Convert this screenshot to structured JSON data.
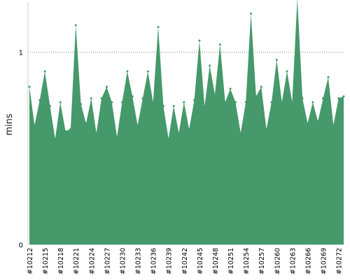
{
  "chart_data": {
    "type": "area",
    "ylabel": "mins",
    "xlabel": "",
    "title": "",
    "ylim": [
      0,
      1.26
    ],
    "y_ticks": [
      0,
      1
    ],
    "y_tick_labels": [
      "0",
      "1"
    ],
    "grid": {
      "horizontal_dotted_at": [
        1
      ]
    },
    "legend": "none",
    "colors": {
      "fill": "#45996a",
      "grid": "#888888",
      "axis": "#cccccc"
    },
    "x_tick_labels": [
      "#10212",
      "#10215",
      "#10218",
      "#10221",
      "#10224",
      "#10227",
      "#10230",
      "#10233",
      "#10236",
      "#10239",
      "#10242",
      "#10245",
      "#10248",
      "#10251",
      "#10254",
      "#10257",
      "#10260",
      "#10263",
      "#10266",
      "#10269",
      "#10272"
    ],
    "series": [
      {
        "x": [
          "#10212",
          "#10213",
          "#10214",
          "#10215",
          "#10216",
          "#10217",
          "#10218",
          "#10219",
          "#10220",
          "#10221",
          "#10222",
          "#10223",
          "#10224",
          "#10225",
          "#10226",
          "#10227",
          "#10228",
          "#10229",
          "#10230",
          "#10231",
          "#10232",
          "#10233",
          "#10234",
          "#10235",
          "#10236",
          "#10237",
          "#10238",
          "#10239",
          "#10240",
          "#10241",
          "#10242",
          "#10243",
          "#10244",
          "#10245",
          "#10246",
          "#10247",
          "#10248",
          "#10249",
          "#10250",
          "#10251",
          "#10252",
          "#10253",
          "#10254",
          "#10255",
          "#10256",
          "#10257",
          "#10258",
          "#10259",
          "#10260",
          "#10261",
          "#10262",
          "#10263",
          "#10264",
          "#10265",
          "#10266",
          "#10267",
          "#10268",
          "#10269",
          "#10270",
          "#10271",
          "#10272",
          "#10273"
        ],
        "values": [
          0.82,
          0.62,
          0.75,
          0.9,
          0.72,
          0.55,
          0.74,
          0.59,
          0.6,
          1.14,
          0.73,
          0.63,
          0.76,
          0.58,
          0.76,
          0.82,
          0.74,
          0.56,
          0.74,
          0.9,
          0.77,
          0.62,
          0.76,
          0.9,
          0.74,
          1.13,
          0.72,
          0.55,
          0.72,
          0.58,
          0.74,
          0.6,
          0.75,
          1.06,
          0.72,
          0.93,
          0.78,
          1.04,
          0.74,
          0.81,
          0.74,
          0.58,
          0.74,
          1.2,
          0.77,
          0.82,
          0.6,
          0.74,
          0.96,
          0.74,
          0.9,
          0.74,
          1.28,
          0.76,
          0.63,
          0.74,
          0.64,
          0.76,
          0.87,
          0.62,
          0.76,
          0.77
        ]
      }
    ]
  }
}
